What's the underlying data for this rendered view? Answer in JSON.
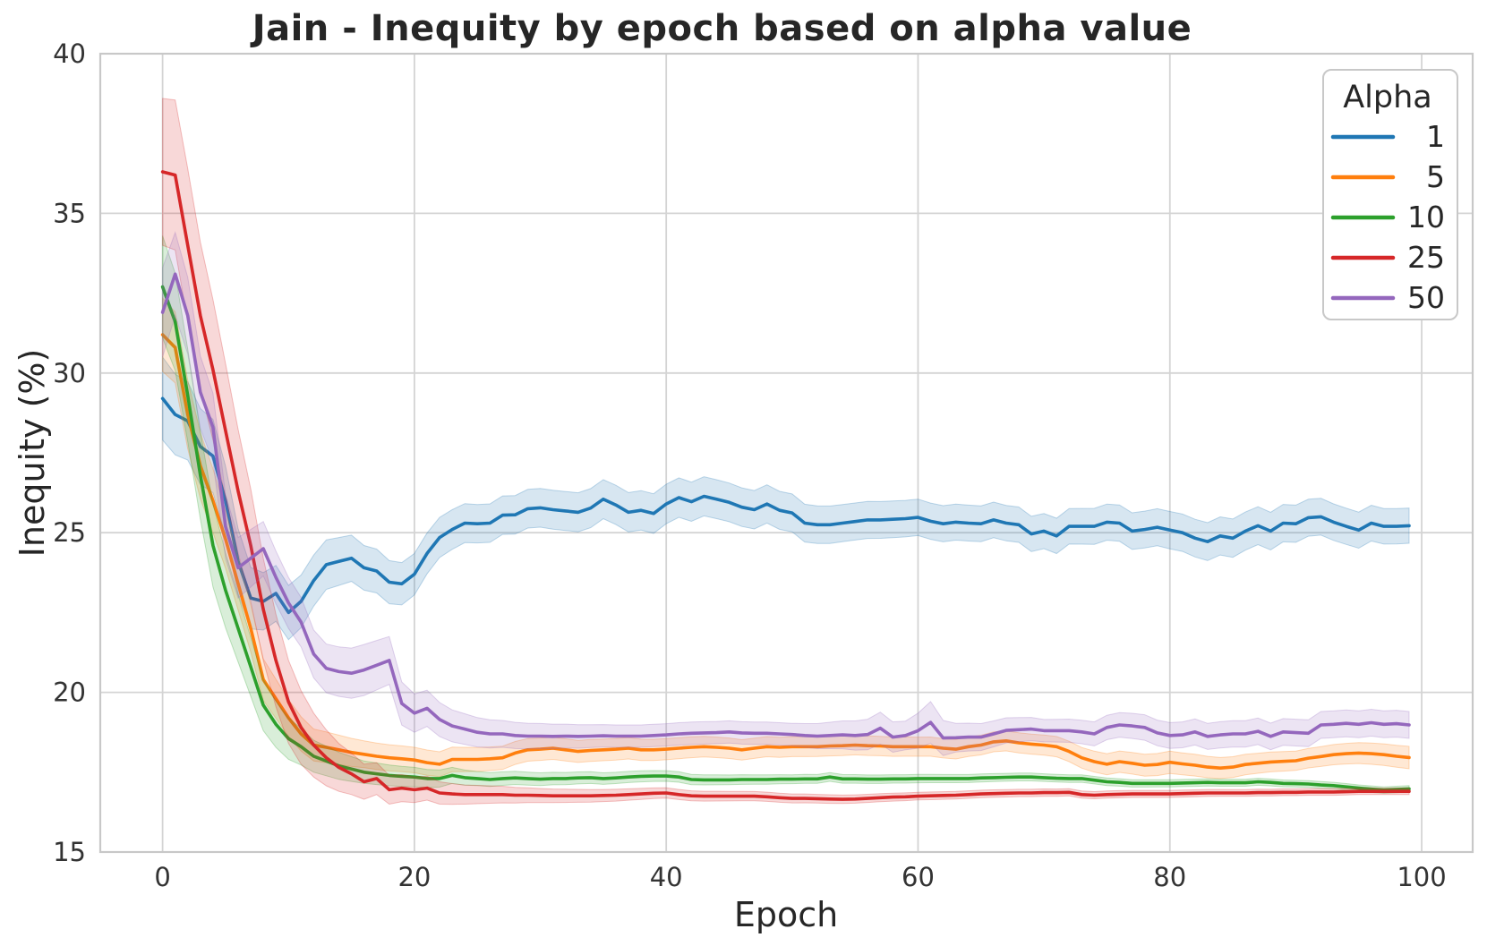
{
  "figure": {
    "title": "Jain - Inequity by epoch based on alpha value",
    "background": "#ffffff"
  },
  "chart_data": {
    "type": "line",
    "title": "Jain - Inequity by epoch based on alpha value",
    "xlabel": "Epoch",
    "ylabel": "Inequity (%)",
    "x_description": "epoch index, one point per epoch from 0 to 99",
    "xlim": [
      -4.95,
      104.05
    ],
    "ylim": [
      15,
      40
    ],
    "xticks": [
      0,
      20,
      40,
      60,
      80,
      100
    ],
    "yticks": [
      15,
      20,
      25,
      30,
      35,
      40
    ],
    "grid": true,
    "legend": {
      "title": "Alpha",
      "position": "upper right",
      "entries": [
        "1",
        "5",
        "10",
        "25",
        "50"
      ]
    },
    "styles": {
      "grid_color": "#d4d4d4",
      "border_color": "#c8c8c8",
      "text_color": "#262626",
      "tick_color": "#333333",
      "band_opacity": 0.18
    },
    "series": [
      {
        "name": "1",
        "color": "#1f77b4",
        "values": [
          29.2,
          28.7,
          28.5,
          27.7,
          27.4,
          26.0,
          24.1,
          22.95,
          22.85,
          23.1,
          22.5,
          22.85,
          23.5,
          24.0,
          24.1,
          24.2,
          23.9,
          23.8,
          23.45,
          23.4,
          23.7,
          24.35,
          24.85,
          25.1,
          25.3,
          25.28,
          25.3,
          25.55,
          25.56,
          25.75,
          25.78,
          25.72,
          25.68,
          25.64,
          25.77,
          26.05,
          25.87,
          25.64,
          25.7,
          25.6,
          25.9,
          26.1,
          25.97,
          26.14,
          26.05,
          25.95,
          25.8,
          25.72,
          25.9,
          25.7,
          25.62,
          25.3,
          25.25,
          25.25,
          25.3,
          25.35,
          25.4,
          25.4,
          25.42,
          25.44,
          25.48,
          25.36,
          25.28,
          25.33,
          25.3,
          25.28,
          25.4,
          25.3,
          25.25,
          24.96,
          25.05,
          24.9,
          25.2,
          25.2,
          25.2,
          25.33,
          25.3,
          25.05,
          25.1,
          25.17,
          25.08,
          25.0,
          24.83,
          24.72,
          24.9,
          24.83,
          25.05,
          25.22,
          25.05,
          25.3,
          25.28,
          25.47,
          25.5,
          25.33,
          25.2,
          25.08,
          25.3,
          25.2,
          25.2,
          25.22
        ],
        "band_halfwidth_points": [
          [
            0,
            1.3
          ],
          [
            4,
            1.15
          ],
          [
            8,
            0.9
          ],
          [
            12,
            0.8
          ],
          [
            16,
            0.7
          ],
          [
            20,
            0.65
          ],
          [
            25,
            0.6
          ],
          [
            40,
            0.62
          ],
          [
            55,
            0.58
          ],
          [
            70,
            0.55
          ],
          [
            85,
            0.6
          ],
          [
            99,
            0.55
          ]
        ]
      },
      {
        "name": "5",
        "color": "#ff7f0e",
        "values": [
          31.2,
          30.8,
          28.7,
          27.1,
          26.0,
          24.8,
          23.4,
          22.0,
          20.4,
          19.8,
          19.2,
          18.7,
          18.35,
          18.28,
          18.2,
          18.12,
          18.06,
          18.0,
          17.95,
          17.92,
          17.88,
          17.8,
          17.75,
          17.9,
          17.9,
          17.9,
          17.92,
          17.95,
          18.1,
          18.2,
          18.22,
          18.25,
          18.2,
          18.15,
          18.18,
          18.2,
          18.22,
          18.25,
          18.2,
          18.2,
          18.22,
          18.25,
          18.28,
          18.3,
          18.28,
          18.25,
          18.2,
          18.25,
          18.3,
          18.28,
          18.3,
          18.3,
          18.3,
          18.32,
          18.33,
          18.35,
          18.33,
          18.32,
          18.3,
          18.3,
          18.3,
          18.3,
          18.25,
          18.22,
          18.3,
          18.35,
          18.45,
          18.48,
          18.42,
          18.38,
          18.35,
          18.3,
          18.15,
          17.95,
          17.83,
          17.75,
          17.83,
          17.78,
          17.72,
          17.74,
          17.81,
          17.76,
          17.72,
          17.66,
          17.63,
          17.66,
          17.74,
          17.78,
          17.82,
          17.84,
          17.86,
          17.94,
          17.99,
          18.05,
          18.08,
          18.1,
          18.08,
          18.05,
          18.0,
          17.96
        ],
        "band_halfwidth_points": [
          [
            0,
            1.15
          ],
          [
            4,
            1.0
          ],
          [
            8,
            0.65
          ],
          [
            12,
            0.5
          ],
          [
            16,
            0.42
          ],
          [
            20,
            0.4
          ],
          [
            30,
            0.35
          ],
          [
            45,
            0.32
          ],
          [
            60,
            0.3
          ],
          [
            72,
            0.32
          ],
          [
            80,
            0.35
          ],
          [
            90,
            0.3
          ],
          [
            99,
            0.35
          ]
        ]
      },
      {
        "name": "10",
        "color": "#2ca02c",
        "values": [
          32.7,
          31.6,
          29.3,
          26.8,
          24.6,
          23.2,
          22.0,
          20.8,
          19.6,
          19.0,
          18.55,
          18.3,
          18.0,
          17.85,
          17.7,
          17.6,
          17.5,
          17.45,
          17.4,
          17.37,
          17.35,
          17.3,
          17.3,
          17.4,
          17.33,
          17.3,
          17.27,
          17.3,
          17.32,
          17.3,
          17.28,
          17.3,
          17.3,
          17.32,
          17.33,
          17.3,
          17.32,
          17.35,
          17.37,
          17.38,
          17.38,
          17.35,
          17.27,
          17.26,
          17.26,
          17.26,
          17.27,
          17.27,
          17.27,
          17.28,
          17.28,
          17.29,
          17.29,
          17.35,
          17.29,
          17.29,
          17.28,
          17.28,
          17.29,
          17.29,
          17.3,
          17.3,
          17.3,
          17.3,
          17.3,
          17.32,
          17.33,
          17.34,
          17.35,
          17.35,
          17.33,
          17.31,
          17.3,
          17.3,
          17.25,
          17.2,
          17.18,
          17.15,
          17.15,
          17.15,
          17.15,
          17.16,
          17.17,
          17.18,
          17.17,
          17.17,
          17.17,
          17.2,
          17.18,
          17.15,
          17.14,
          17.13,
          17.1,
          17.08,
          17.04,
          17.0,
          16.97,
          16.94,
          16.96,
          16.98
        ],
        "band_halfwidth_points": [
          [
            0,
            1.6
          ],
          [
            4,
            1.3
          ],
          [
            8,
            0.8
          ],
          [
            12,
            0.5
          ],
          [
            16,
            0.35
          ],
          [
            20,
            0.3
          ],
          [
            25,
            0.22
          ],
          [
            35,
            0.18
          ],
          [
            50,
            0.14
          ],
          [
            70,
            0.12
          ],
          [
            99,
            0.1
          ]
        ]
      },
      {
        "name": "25",
        "color": "#d62728",
        "values": [
          36.3,
          36.2,
          34.0,
          31.8,
          30.1,
          28.2,
          26.3,
          24.6,
          22.6,
          21.0,
          19.7,
          18.9,
          18.35,
          17.95,
          17.65,
          17.45,
          17.2,
          17.3,
          16.95,
          17.0,
          16.95,
          17.0,
          16.85,
          16.82,
          16.8,
          16.8,
          16.8,
          16.8,
          16.78,
          16.78,
          16.77,
          16.76,
          16.76,
          16.76,
          16.76,
          16.77,
          16.78,
          16.8,
          16.82,
          16.84,
          16.85,
          16.8,
          16.76,
          16.75,
          16.75,
          16.75,
          16.75,
          16.75,
          16.73,
          16.7,
          16.68,
          16.68,
          16.67,
          16.66,
          16.65,
          16.66,
          16.68,
          16.7,
          16.72,
          16.73,
          16.75,
          16.76,
          16.77,
          16.78,
          16.8,
          16.82,
          16.83,
          16.84,
          16.85,
          16.85,
          16.86,
          16.86,
          16.87,
          16.8,
          16.78,
          16.8,
          16.81,
          16.82,
          16.82,
          16.82,
          16.82,
          16.83,
          16.84,
          16.85,
          16.85,
          16.85,
          16.85,
          16.86,
          16.86,
          16.87,
          16.87,
          16.88,
          16.88,
          16.88,
          16.89,
          16.9,
          16.9,
          16.9,
          16.9,
          16.9
        ],
        "band_halfwidth_points": [
          [
            0,
            2.3
          ],
          [
            2,
            2.4
          ],
          [
            5,
            2.1
          ],
          [
            8,
            1.6
          ],
          [
            10,
            1.3
          ],
          [
            12,
            1.0
          ],
          [
            14,
            0.75
          ],
          [
            16,
            0.55
          ],
          [
            18,
            0.45
          ],
          [
            20,
            0.4
          ],
          [
            24,
            0.3
          ],
          [
            30,
            0.22
          ],
          [
            40,
            0.16
          ],
          [
            60,
            0.12
          ],
          [
            99,
            0.1
          ]
        ]
      },
      {
        "name": "50",
        "color": "#9467bd",
        "values": [
          31.9,
          33.1,
          31.8,
          29.4,
          28.3,
          25.2,
          23.9,
          24.2,
          24.5,
          23.6,
          22.8,
          22.2,
          21.2,
          20.75,
          20.65,
          20.6,
          20.7,
          20.85,
          21.0,
          19.65,
          19.35,
          19.5,
          19.15,
          18.95,
          18.85,
          18.75,
          18.7,
          18.7,
          18.65,
          18.63,
          18.63,
          18.62,
          18.63,
          18.62,
          18.63,
          18.64,
          18.63,
          18.63,
          18.63,
          18.65,
          18.67,
          18.7,
          18.72,
          18.73,
          18.74,
          18.76,
          18.73,
          18.72,
          18.72,
          18.7,
          18.68,
          18.65,
          18.63,
          18.65,
          18.67,
          18.65,
          18.68,
          18.88,
          18.6,
          18.65,
          18.8,
          19.06,
          18.57,
          18.58,
          18.6,
          18.6,
          18.7,
          18.81,
          18.83,
          18.85,
          18.8,
          18.8,
          18.8,
          18.76,
          18.7,
          18.9,
          18.98,
          18.95,
          18.9,
          18.73,
          18.65,
          18.67,
          18.76,
          18.62,
          18.67,
          18.7,
          18.7,
          18.78,
          18.62,
          18.76,
          18.74,
          18.72,
          18.98,
          19.0,
          19.03,
          19.0,
          19.05,
          19.0,
          19.02,
          18.98
        ],
        "band_halfwidth_points": [
          [
            0,
            1.4
          ],
          [
            2,
            1.2
          ],
          [
            5,
            1.0
          ],
          [
            8,
            0.85
          ],
          [
            12,
            0.75
          ],
          [
            16,
            0.8
          ],
          [
            18,
            0.75
          ],
          [
            20,
            0.6
          ],
          [
            23,
            0.5
          ],
          [
            27,
            0.42
          ],
          [
            35,
            0.35
          ],
          [
            50,
            0.35
          ],
          [
            57,
            0.5
          ],
          [
            59,
            0.45
          ],
          [
            61,
            0.65
          ],
          [
            63,
            0.45
          ],
          [
            70,
            0.35
          ],
          [
            78,
            0.4
          ],
          [
            90,
            0.42
          ],
          [
            99,
            0.42
          ]
        ]
      }
    ]
  }
}
